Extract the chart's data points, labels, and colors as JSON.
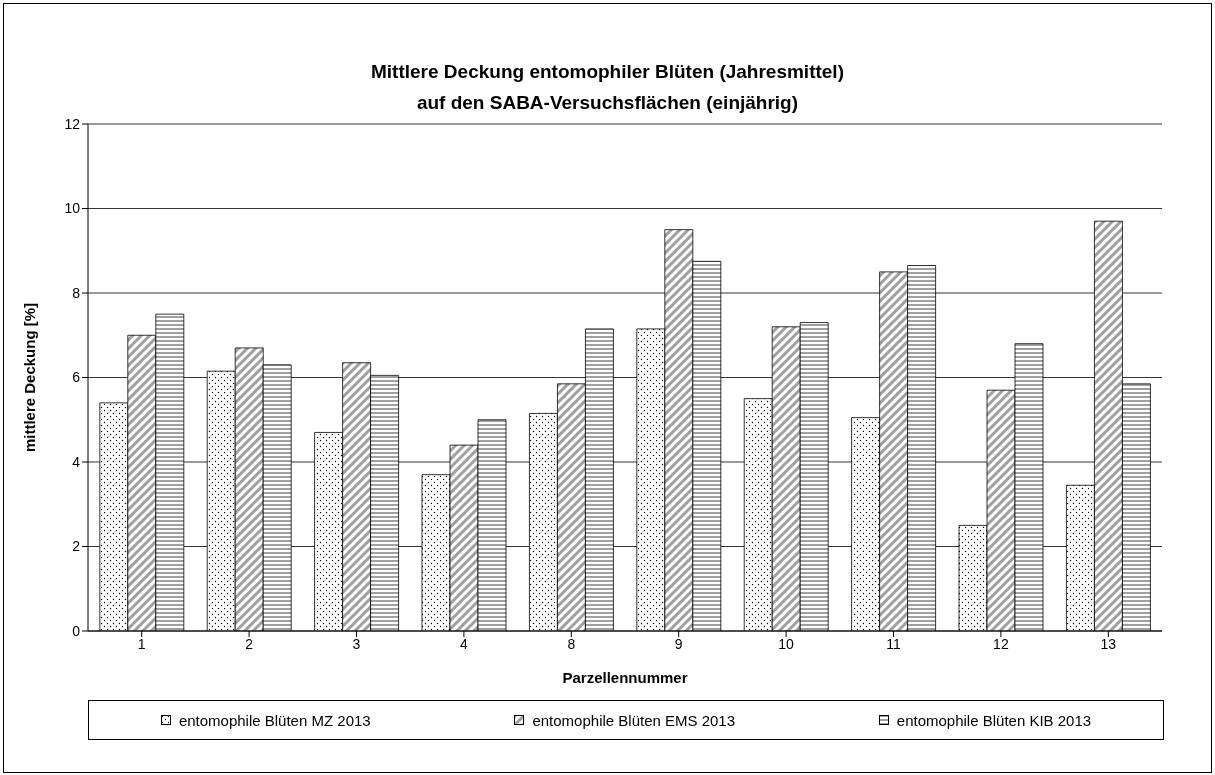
{
  "chart_data": {
    "type": "bar",
    "title": "Mittlere Deckung entomophiler Blüten (Jahresmittel)\nauf den SABA-Versuchsflächen (einjährig)",
    "xlabel": "Parzellennummer",
    "ylabel": "mittlere Deckung [%]",
    "categories": [
      "1",
      "2",
      "3",
      "4",
      "8",
      "9",
      "10",
      "11",
      "12",
      "13"
    ],
    "series": [
      {
        "name": "entomophile Blüten MZ 2013",
        "color": "#000000",
        "values": [
          5.4,
          6.15,
          4.7,
          3.7,
          5.15,
          7.15,
          5.5,
          5.05,
          2.5,
          3.45
        ]
      },
      {
        "name": "entomophile Blüten EMS 2013",
        "color": "#000000",
        "values": [
          7.0,
          6.7,
          6.35,
          4.4,
          5.85,
          9.5,
          7.2,
          8.5,
          5.7,
          9.7
        ]
      },
      {
        "name": "entomophile Blüten KIB 2013",
        "color": "#000000",
        "values": [
          7.5,
          6.3,
          6.05,
          5.0,
          7.15,
          8.75,
          7.3,
          8.65,
          6.8,
          5.85
        ]
      }
    ],
    "ylim": [
      0,
      12
    ],
    "yticks": [
      0,
      2,
      4,
      6,
      8,
      10,
      12
    ],
    "grid": "y",
    "legend": "bottom"
  }
}
